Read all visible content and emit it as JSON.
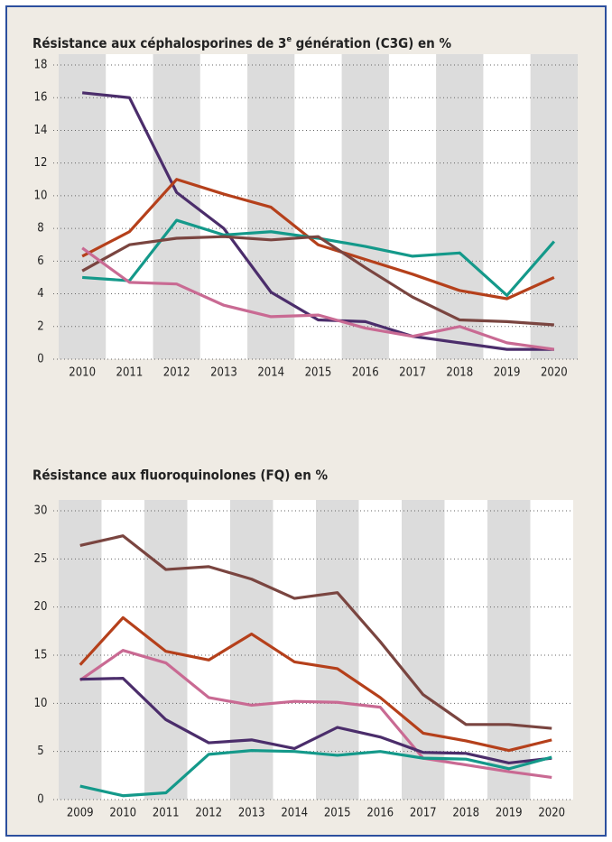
{
  "chart_data": [
    {
      "type": "line",
      "title": [
        "Résistance aux céphalosporines de 3",
        "e",
        " génération (C3G) en %"
      ],
      "categories": [
        "2010",
        "2011",
        "2012",
        "2013",
        "2014",
        "2015",
        "2016",
        "2017",
        "2018",
        "2019",
        "2020"
      ],
      "ylim": [
        0,
        18
      ],
      "yticks": [
        0,
        2,
        4,
        6,
        8,
        10,
        12,
        14,
        16,
        18
      ],
      "grid": true,
      "series": [
        {
          "color": "#4b2d6b",
          "values": [
            16.3,
            16.0,
            10.2,
            8.0,
            4.1,
            2.4,
            2.3,
            1.4,
            1.0,
            0.6,
            0.6
          ]
        },
        {
          "color": "#b5401b",
          "values": [
            6.3,
            7.8,
            11.0,
            10.1,
            9.3,
            7.0,
            6.1,
            5.2,
            4.2,
            3.7,
            5.0
          ]
        },
        {
          "color": "#14998a",
          "values": [
            5.0,
            4.8,
            8.5,
            7.6,
            7.8,
            7.4,
            6.9,
            6.3,
            6.5,
            3.9,
            7.2
          ]
        },
        {
          "color": "#7a4540",
          "values": [
            5.4,
            7.0,
            7.4,
            7.5,
            7.3,
            7.5,
            5.6,
            3.8,
            2.4,
            2.3,
            2.1
          ]
        },
        {
          "color": "#c96a93",
          "values": [
            6.8,
            4.7,
            4.6,
            3.3,
            2.6,
            2.7,
            1.9,
            1.4,
            2.0,
            1.0,
            0.6
          ]
        }
      ]
    },
    {
      "type": "line",
      "title": "Résistance aux fluoroquinolones (FQ) en %",
      "categories": [
        "2009",
        "2010",
        "2011",
        "2012",
        "2013",
        "2014",
        "2015",
        "2016",
        "2017",
        "2018",
        "2019",
        "2020"
      ],
      "ylim": [
        0,
        30
      ],
      "yticks": [
        0,
        5,
        10,
        15,
        20,
        25,
        30
      ],
      "grid": true,
      "series": [
        {
          "color": "#7a4540",
          "values": [
            26.4,
            27.4,
            23.9,
            24.2,
            22.9,
            20.9,
            21.5,
            16.4,
            10.9,
            7.8,
            7.8,
            7.4
          ]
        },
        {
          "color": "#b5401b",
          "values": [
            14.0,
            18.9,
            15.4,
            14.5,
            17.2,
            14.3,
            13.6,
            10.6,
            6.9,
            6.1,
            5.1,
            6.2
          ]
        },
        {
          "color": "#c96a93",
          "values": [
            12.4,
            15.5,
            14.2,
            10.6,
            9.8,
            10.2,
            10.1,
            9.6,
            4.3,
            3.6,
            2.9,
            2.3
          ]
        },
        {
          "color": "#4b2d6b",
          "values": [
            12.5,
            12.6,
            8.3,
            5.9,
            6.2,
            5.3,
            7.5,
            6.5,
            4.9,
            4.8,
            3.8,
            4.3
          ]
        },
        {
          "color": "#14998a",
          "values": [
            1.4,
            0.4,
            0.7,
            4.7,
            5.1,
            5.0,
            4.6,
            5.0,
            4.3,
            4.2,
            3.2,
            4.4
          ]
        }
      ]
    }
  ]
}
